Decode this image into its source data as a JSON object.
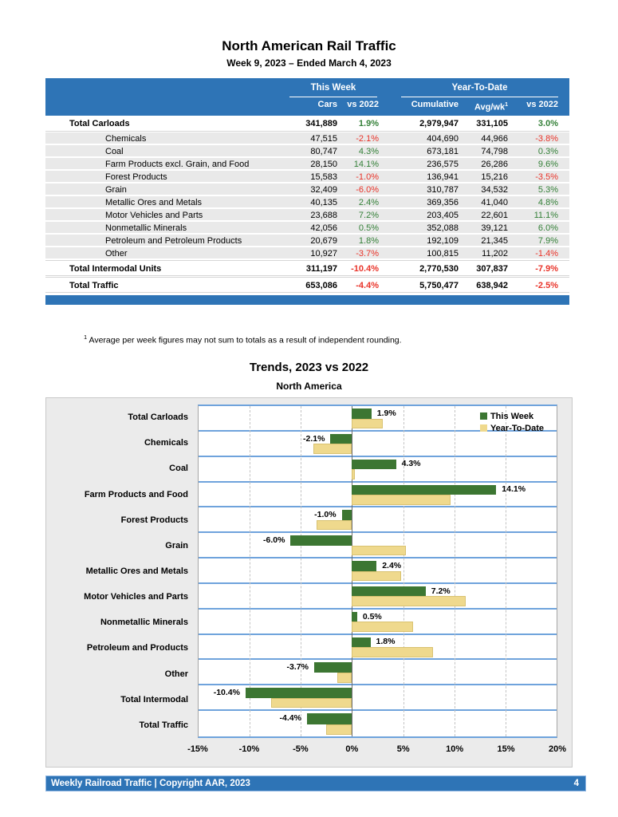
{
  "header": {
    "title": "North American Rail Traffic",
    "subtitle": "Week 9, 2023 – Ended March 4, 2023"
  },
  "table": {
    "group_headers": {
      "this_week": "This Week",
      "ytd": "Year-To-Date"
    },
    "columns": {
      "cars": "Cars",
      "cars_vs2022": "vs 2022",
      "cumulative": "Cumulative",
      "avg_wk": "Avg/wk",
      "avg_wk_sup": "1",
      "ytd_vs2022": "vs 2022"
    },
    "rows": [
      {
        "label": "Total Carloads",
        "total": true,
        "cars": "341,889",
        "cars_pct": "1.9%",
        "cumulative": "2,979,947",
        "avg_wk": "331,105",
        "ytd_pct": "3.0%"
      },
      {
        "label": "Chemicals",
        "total": false,
        "cars": "47,515",
        "cars_pct": "-2.1%",
        "cumulative": "404,690",
        "avg_wk": "44,966",
        "ytd_pct": "-3.8%"
      },
      {
        "label": "Coal",
        "total": false,
        "cars": "80,747",
        "cars_pct": "4.3%",
        "cumulative": "673,181",
        "avg_wk": "74,798",
        "ytd_pct": "0.3%"
      },
      {
        "label": "Farm Products excl. Grain, and Food",
        "total": false,
        "cars": "28,150",
        "cars_pct": "14.1%",
        "cumulative": "236,575",
        "avg_wk": "26,286",
        "ytd_pct": "9.6%"
      },
      {
        "label": "Forest Products",
        "total": false,
        "cars": "15,583",
        "cars_pct": "-1.0%",
        "cumulative": "136,941",
        "avg_wk": "15,216",
        "ytd_pct": "-3.5%"
      },
      {
        "label": "Grain",
        "total": false,
        "cars": "32,409",
        "cars_pct": "-6.0%",
        "cumulative": "310,787",
        "avg_wk": "34,532",
        "ytd_pct": "5.3%"
      },
      {
        "label": "Metallic Ores and Metals",
        "total": false,
        "cars": "40,135",
        "cars_pct": "2.4%",
        "cumulative": "369,356",
        "avg_wk": "41,040",
        "ytd_pct": "4.8%"
      },
      {
        "label": "Motor Vehicles and Parts",
        "total": false,
        "cars": "23,688",
        "cars_pct": "7.2%",
        "cumulative": "203,405",
        "avg_wk": "22,601",
        "ytd_pct": "11.1%"
      },
      {
        "label": "Nonmetallic Minerals",
        "total": false,
        "cars": "42,056",
        "cars_pct": "0.5%",
        "cumulative": "352,088",
        "avg_wk": "39,121",
        "ytd_pct": "6.0%"
      },
      {
        "label": "Petroleum and Petroleum Products",
        "total": false,
        "cars": "20,679",
        "cars_pct": "1.8%",
        "cumulative": "192,109",
        "avg_wk": "21,345",
        "ytd_pct": "7.9%"
      },
      {
        "label": "Other",
        "total": false,
        "cars": "10,927",
        "cars_pct": "-3.7%",
        "cumulative": "100,815",
        "avg_wk": "11,202",
        "ytd_pct": "-1.4%"
      },
      {
        "label": "Total Intermodal Units",
        "total": true,
        "cars": "311,197",
        "cars_pct": "-10.4%",
        "cumulative": "2,770,530",
        "avg_wk": "307,837",
        "ytd_pct": "-7.9%"
      },
      {
        "label": "Total Traffic",
        "total": true,
        "cars": "653,086",
        "cars_pct": "-4.4%",
        "cumulative": "5,750,477",
        "avg_wk": "638,942",
        "ytd_pct": "-2.5%"
      }
    ]
  },
  "footnote": {
    "marker": "1",
    "text": "Average per week figures may not sum to totals as a result of independent rounding."
  },
  "chart": {
    "title": "Trends, 2023 vs 2022",
    "subtitle": "North America"
  },
  "chart_data": {
    "type": "bar",
    "orientation": "horizontal",
    "title": "Trends, 2023 vs 2022",
    "subtitle": "North America",
    "categories": [
      "Total Carloads",
      "Chemicals",
      "Coal",
      "Farm Products and Food",
      "Forest Products",
      "Grain",
      "Metallic Ores and Metals",
      "Motor Vehicles and Parts",
      "Nonmetallic Minerals",
      "Petroleum and Products",
      "Other",
      "Total Intermodal",
      "Total Traffic"
    ],
    "series": [
      {
        "name": "This Week",
        "color": "#3C7632",
        "values": [
          1.9,
          -2.1,
          4.3,
          14.1,
          -1.0,
          -6.0,
          2.4,
          7.2,
          0.5,
          1.8,
          -3.7,
          -10.4,
          -4.4
        ]
      },
      {
        "name": "Year-To-Date",
        "color": "#EFD98D",
        "values": [
          3.0,
          -3.8,
          0.3,
          9.6,
          -3.5,
          5.3,
          4.8,
          11.1,
          6.0,
          7.9,
          -1.4,
          -7.9,
          -2.5
        ]
      }
    ],
    "bar_labels": [
      "1.9%",
      "-2.1%",
      "4.3%",
      "14.1%",
      "-1.0%",
      "-6.0%",
      "2.4%",
      "7.2%",
      "0.5%",
      "1.8%",
      "-3.7%",
      "-10.4%",
      "-4.4%"
    ],
    "xlim": [
      -15,
      20
    ],
    "x_ticks": [
      {
        "value": -15,
        "label": "-15%"
      },
      {
        "value": -10,
        "label": "-10%"
      },
      {
        "value": -5,
        "label": "-5%"
      },
      {
        "value": 0,
        "label": "0%"
      },
      {
        "value": 5,
        "label": "5%"
      },
      {
        "value": 10,
        "label": "10%"
      },
      {
        "value": 15,
        "label": "15%"
      },
      {
        "value": 20,
        "label": "20%"
      }
    ],
    "grid": "vertical-dashed",
    "legend_position": "top-right"
  },
  "footer": {
    "text": "Weekly Railroad Traffic | Copyright AAR, 2023",
    "page": "4"
  },
  "colors": {
    "header_blue": "#2E74B6",
    "positive_green": "#348038",
    "negative_red": "#E93329",
    "bar_green": "#3C7632",
    "bar_tan": "#EFD98D",
    "row_stripe": "#E9E9E9",
    "chart_bg": "#EBEBEB",
    "separator_blue": "#6FA3DC"
  }
}
